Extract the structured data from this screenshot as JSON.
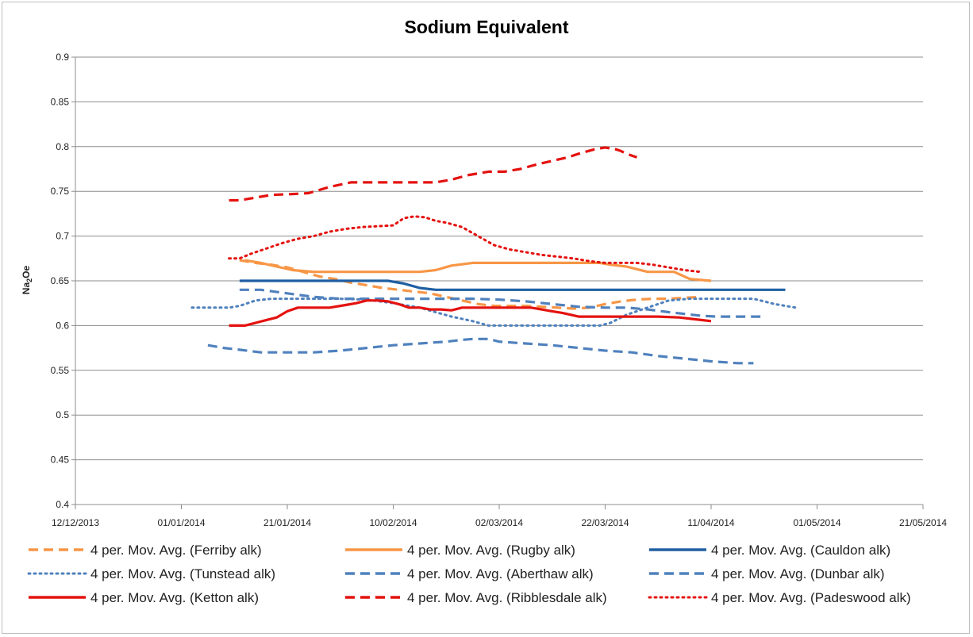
{
  "chart_data": {
    "type": "line",
    "title": "Sodium Equivalent",
    "ylabel_main": "Na",
    "ylabel_sub": "2",
    "ylabel_tail": "Oe",
    "xlabel": "",
    "ylim": [
      0.4,
      0.9
    ],
    "yticks": [
      0.4,
      0.45,
      0.5,
      0.55,
      0.6,
      0.65,
      0.7,
      0.75,
      0.8,
      0.85,
      0.9
    ],
    "ytick_labels": [
      "0.4",
      "0.45",
      "0.5",
      "0.55",
      "0.6",
      "0.65",
      "0.7",
      "0.75",
      "0.8",
      "0.85",
      "0.9"
    ],
    "x_unit": "days since 12/12/2013",
    "xlim": [
      0,
      160
    ],
    "xticks": [
      0,
      20,
      40,
      60,
      80,
      100,
      120,
      140,
      160
    ],
    "xtick_labels": [
      "12/12/2013",
      "01/01/2014",
      "21/01/2014",
      "10/02/2014",
      "02/03/2014",
      "22/03/2014",
      "11/04/2014",
      "01/05/2014",
      "21/05/2014"
    ],
    "legend_position": "bottom",
    "series": [
      {
        "name": "4 per. Mov. Avg. (Ferriby alk)",
        "color": "#f79646",
        "style": "dash",
        "x": [
          31,
          34,
          37,
          40,
          43,
          46,
          49,
          52,
          55,
          58,
          61,
          64,
          67,
          70,
          73,
          76,
          79,
          82,
          85,
          88,
          91,
          94,
          97,
          100,
          103,
          106,
          109,
          112,
          115,
          118
        ],
        "y": [
          0.673,
          0.67,
          0.668,
          0.665,
          0.66,
          0.655,
          0.652,
          0.648,
          0.645,
          0.642,
          0.64,
          0.638,
          0.636,
          0.632,
          0.628,
          0.624,
          0.622,
          0.622,
          0.622,
          0.621,
          0.62,
          0.619,
          0.62,
          0.624,
          0.627,
          0.629,
          0.63,
          0.63,
          0.631,
          0.632
        ]
      },
      {
        "name": "4 per. Mov. Avg. (Rugby alk)",
        "color": "#f79646",
        "style": "solid",
        "x": [
          32,
          35,
          38,
          41,
          45,
          50,
          55,
          60,
          65,
          68,
          71,
          75,
          80,
          85,
          90,
          95,
          99,
          101,
          104,
          108,
          111,
          113,
          116,
          120
        ],
        "y": [
          0.673,
          0.67,
          0.666,
          0.662,
          0.66,
          0.66,
          0.66,
          0.66,
          0.66,
          0.662,
          0.667,
          0.67,
          0.67,
          0.67,
          0.67,
          0.67,
          0.67,
          0.668,
          0.666,
          0.66,
          0.66,
          0.66,
          0.652,
          0.65
        ]
      },
      {
        "name": "4 per. Mov. Avg. (Cauldon alk)",
        "color": "#1f5fa3",
        "style": "solid",
        "x": [
          31,
          40,
          50,
          59,
          62,
          65,
          68,
          75,
          85,
          95,
          105,
          115,
          125,
          134
        ],
        "y": [
          0.65,
          0.65,
          0.65,
          0.65,
          0.647,
          0.642,
          0.64,
          0.64,
          0.64,
          0.64,
          0.64,
          0.64,
          0.64,
          0.64
        ]
      },
      {
        "name": "4 per. Mov. Avg. (Tunstead alk)",
        "color": "#4f81bd",
        "style": "dot",
        "x": [
          22,
          26,
          29,
          31,
          34,
          37,
          41,
          45,
          50,
          55,
          60,
          65,
          68,
          71,
          75,
          78,
          83,
          88,
          92,
          96,
          99,
          101,
          104,
          108,
          112,
          116,
          120,
          124,
          128,
          132,
          136
        ],
        "y": [
          0.62,
          0.62,
          0.62,
          0.622,
          0.628,
          0.63,
          0.63,
          0.63,
          0.63,
          0.629,
          0.625,
          0.62,
          0.615,
          0.61,
          0.605,
          0.6,
          0.6,
          0.6,
          0.6,
          0.6,
          0.6,
          0.603,
          0.612,
          0.62,
          0.628,
          0.63,
          0.63,
          0.63,
          0.63,
          0.624,
          0.62
        ]
      },
      {
        "name": "4 per. Mov. Avg. (Aberthaw alk)",
        "color": "#4f81bd",
        "style": "dash",
        "x": [
          25,
          28,
          31,
          35,
          40,
          45,
          50,
          55,
          60,
          65,
          70,
          73,
          75,
          78,
          80,
          85,
          90,
          95,
          100,
          105,
          110,
          115,
          120,
          125,
          128
        ],
        "y": [
          0.578,
          0.575,
          0.573,
          0.57,
          0.57,
          0.57,
          0.572,
          0.575,
          0.578,
          0.58,
          0.582,
          0.584,
          0.585,
          0.585,
          0.582,
          0.58,
          0.578,
          0.575,
          0.572,
          0.57,
          0.566,
          0.563,
          0.56,
          0.558,
          0.558
        ]
      },
      {
        "name": "4 per. Mov. Avg. (Dunbar alk)",
        "color": "#4f81bd",
        "style": "dash",
        "x": [
          31,
          35,
          40,
          45,
          50,
          55,
          60,
          65,
          70,
          75,
          80,
          85,
          90,
          95,
          100,
          104,
          108,
          112,
          115,
          118,
          121,
          125,
          130
        ],
        "y": [
          0.64,
          0.64,
          0.636,
          0.632,
          0.63,
          0.63,
          0.63,
          0.63,
          0.63,
          0.63,
          0.629,
          0.627,
          0.624,
          0.621,
          0.62,
          0.62,
          0.618,
          0.615,
          0.613,
          0.611,
          0.61,
          0.61,
          0.61
        ]
      },
      {
        "name": "4 per. Mov. Avg. (Ketton alk)",
        "color": "#e4120f",
        "style": "solid",
        "x": [
          29,
          32,
          34,
          36,
          38,
          40,
          42,
          45,
          48,
          51,
          53,
          55,
          57,
          59,
          61,
          63,
          65,
          67,
          69,
          71,
          73,
          75,
          78,
          82,
          86,
          88,
          90,
          92,
          95,
          100,
          105,
          110,
          114,
          117,
          120
        ],
        "y": [
          0.6,
          0.6,
          0.603,
          0.606,
          0.609,
          0.616,
          0.62,
          0.62,
          0.62,
          0.623,
          0.625,
          0.628,
          0.628,
          0.627,
          0.624,
          0.62,
          0.62,
          0.618,
          0.618,
          0.617,
          0.62,
          0.62,
          0.62,
          0.62,
          0.62,
          0.618,
          0.616,
          0.614,
          0.61,
          0.61,
          0.61,
          0.61,
          0.609,
          0.607,
          0.605
        ]
      },
      {
        "name": "4 per. Mov. Avg. (Ribblesdale alk)",
        "color": "#e4120f",
        "style": "dash",
        "x": [
          29,
          31,
          34,
          37,
          41,
          44,
          48,
          52,
          56,
          60,
          64,
          68,
          71,
          74,
          78,
          81,
          84,
          87,
          90,
          93,
          95,
          98,
          100,
          101,
          102,
          103,
          104,
          105,
          106
        ],
        "y": [
          0.74,
          0.74,
          0.743,
          0.746,
          0.747,
          0.748,
          0.755,
          0.76,
          0.76,
          0.76,
          0.76,
          0.76,
          0.763,
          0.768,
          0.772,
          0.772,
          0.775,
          0.78,
          0.784,
          0.788,
          0.792,
          0.797,
          0.799,
          0.798,
          0.797,
          0.795,
          0.792,
          0.79,
          0.788
        ]
      },
      {
        "name": "4 per. Mov. Avg. (Padeswood alk)",
        "color": "#e4120f",
        "style": "dot",
        "x": [
          29,
          31,
          33,
          36,
          39,
          42,
          45,
          48,
          51,
          54,
          57,
          60,
          62,
          64,
          66,
          68,
          70,
          73,
          76,
          79,
          82,
          85,
          88,
          91,
          94,
          97,
          100,
          103,
          106,
          109,
          112,
          115,
          118
        ],
        "y": [
          0.675,
          0.675,
          0.68,
          0.686,
          0.692,
          0.697,
          0.7,
          0.705,
          0.708,
          0.71,
          0.711,
          0.712,
          0.72,
          0.722,
          0.721,
          0.717,
          0.715,
          0.71,
          0.7,
          0.69,
          0.685,
          0.682,
          0.679,
          0.677,
          0.675,
          0.672,
          0.67,
          0.67,
          0.67,
          0.668,
          0.665,
          0.662,
          0.66
        ]
      }
    ]
  }
}
